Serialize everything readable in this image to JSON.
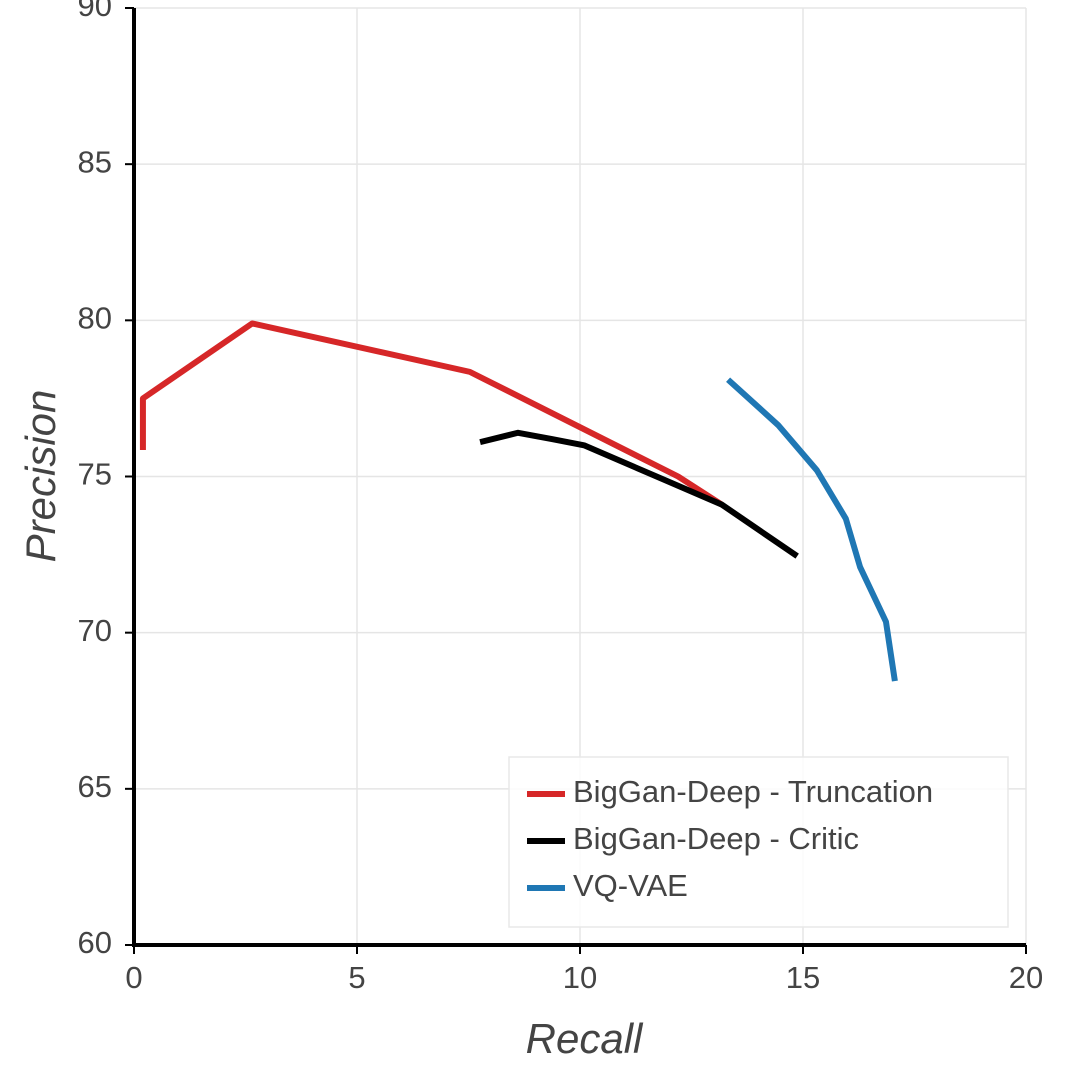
{
  "chart_data": {
    "type": "line",
    "xlabel": "Recall",
    "ylabel": "Precision",
    "xlim": [
      0,
      20
    ],
    "ylim": [
      60,
      90
    ],
    "xticks": [
      0,
      5,
      10,
      15,
      20
    ],
    "yticks": [
      60,
      65,
      70,
      75,
      80,
      85,
      90
    ],
    "grid": true,
    "legend": "lower right",
    "series": [
      {
        "name": "BigGan-Deep - Truncation",
        "color": "#d62728",
        "x": [
          0.2,
          0.2,
          2.65,
          7.53,
          12.2,
          13.18
        ],
        "values": [
          75.85,
          77.5,
          79.9,
          78.35,
          75.0,
          74.1
        ]
      },
      {
        "name": "BigGan-Deep - Critic",
        "color": "#000000",
        "x": [
          7.76,
          8.61,
          9.37,
          10.09,
          11.88,
          13.18,
          14.87
        ],
        "values": [
          76.1,
          76.4,
          76.2,
          76.0,
          74.9,
          74.1,
          72.45
        ]
      },
      {
        "name": "VQ-VAE",
        "color": "#1f77b4",
        "x": [
          13.32,
          14.44,
          15.31,
          15.96,
          16.28,
          16.86,
          17.06
        ],
        "values": [
          78.1,
          76.65,
          75.2,
          73.65,
          72.1,
          70.35,
          68.45
        ]
      }
    ]
  }
}
